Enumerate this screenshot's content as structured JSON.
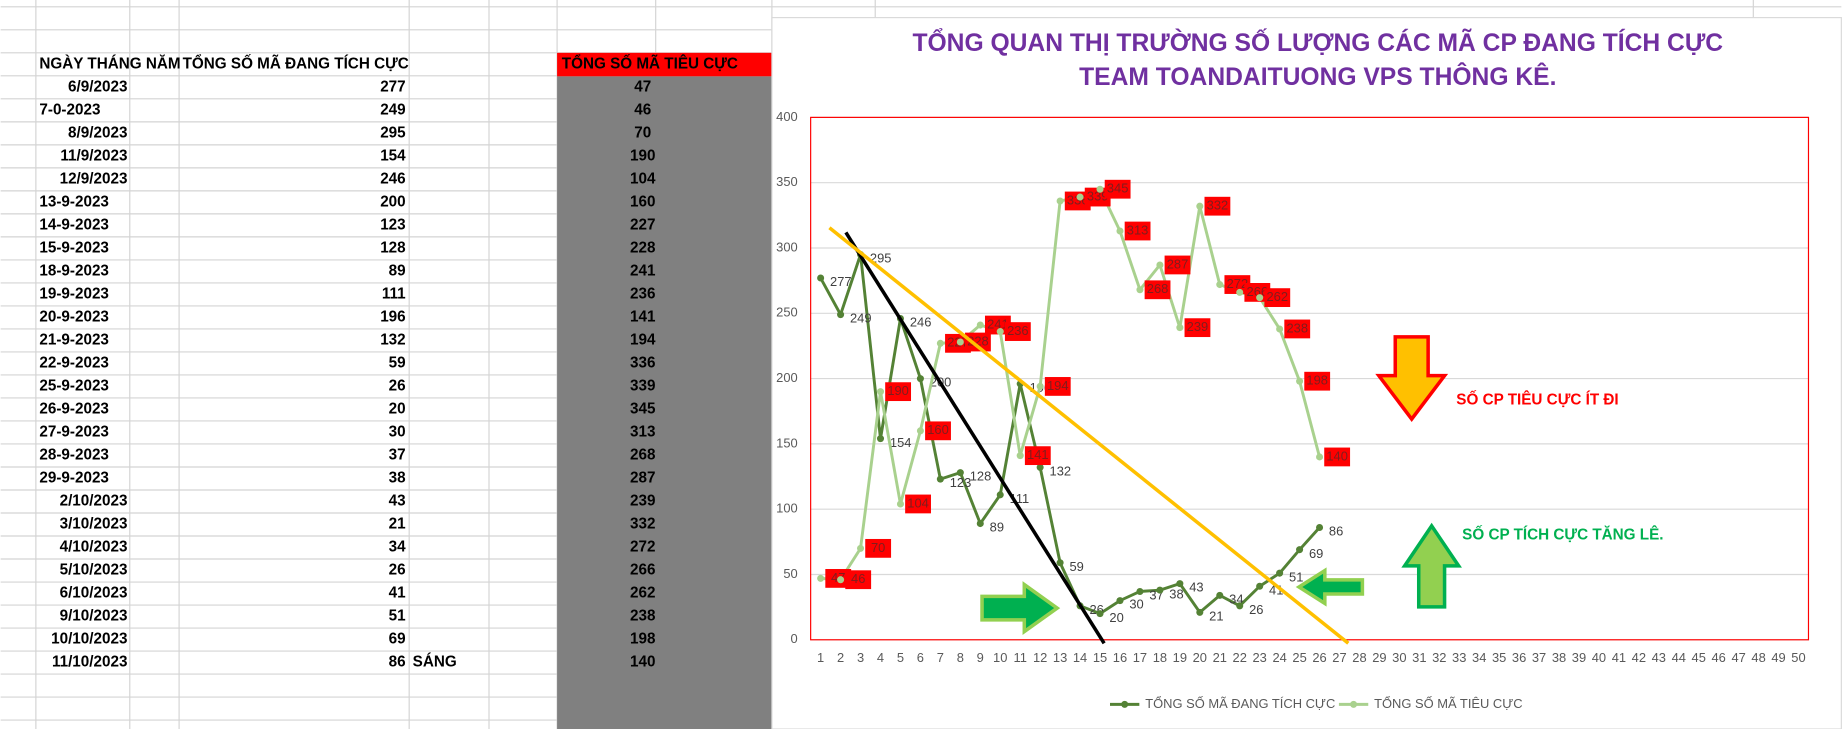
{
  "table": {
    "headers": [
      "NGÀY THÁNG NĂM",
      "TỔNG SỐ MÃ ĐANG TÍCH CỰC",
      "TỔNG SỐ MÃ TIÊU CỰC"
    ],
    "rows": [
      [
        "6/9/2023",
        "277",
        "47"
      ],
      [
        "7-0-2023",
        "249",
        "46"
      ],
      [
        "8/9/2023",
        "295",
        "70"
      ],
      [
        "11/9/2023",
        "154",
        "190"
      ],
      [
        "12/9/2023",
        "246",
        "104"
      ],
      [
        "13-9-2023",
        "200",
        "160"
      ],
      [
        "14-9-2023",
        "123",
        "227"
      ],
      [
        "15-9-2023",
        "128",
        "228"
      ],
      [
        "18-9-2023",
        "89",
        "241"
      ],
      [
        "19-9-2023",
        "111",
        "236"
      ],
      [
        "20-9-2023",
        "196",
        "141"
      ],
      [
        "21-9-2023",
        "132",
        "194"
      ],
      [
        "22-9-2023",
        "59",
        "336"
      ],
      [
        "25-9-2023",
        "26",
        "339"
      ],
      [
        "26-9-2023",
        "20",
        "345"
      ],
      [
        "27-9-2023",
        "30",
        "313"
      ],
      [
        "28-9-2023",
        "37",
        "268"
      ],
      [
        "29-9-2023",
        "38",
        "287"
      ],
      [
        "2/10/2023",
        "43",
        "239"
      ],
      [
        "3/10/2023",
        "21",
        "332"
      ],
      [
        "4/10/2023",
        "34",
        "272"
      ],
      [
        "5/10/2023",
        "26",
        "266"
      ],
      [
        "6/10/2023",
        "41",
        "262"
      ],
      [
        "9/10/2023",
        "51",
        "238"
      ],
      [
        "10/10/2023",
        "69",
        "198"
      ],
      [
        "11/10/2023",
        "86",
        "140",
        "SÁNG"
      ]
    ]
  },
  "chart_data": {
    "type": "line",
    "title": [
      "TỔNG QUAN THỊ TRƯỜNG SỐ LƯỢNG CÁC MÃ CP ĐANG TÍCH CỰC",
      "TEAM TOANDAITUONG VPS THÔNG KÊ."
    ],
    "annotations": [
      "SỐ CP TIÊU CỰC ÍT ĐI",
      "SỐ CP TÍCH CỰC TĂNG LÊ."
    ],
    "categories": [
      1,
      2,
      3,
      4,
      5,
      6,
      7,
      8,
      9,
      10,
      11,
      12,
      13,
      14,
      15,
      16,
      17,
      18,
      19,
      20,
      21,
      22,
      23,
      24,
      25,
      26,
      27,
      28,
      29,
      30,
      31,
      32,
      33,
      34,
      35,
      36,
      37,
      38,
      39,
      40,
      41,
      42,
      43,
      44,
      45,
      46,
      47,
      48,
      49,
      50
    ],
    "series": [
      {
        "name": "TỔNG SỐ MÃ ĐANG TÍCH CỰC",
        "color": "#548235",
        "values": [
          277,
          249,
          295,
          154,
          246,
          200,
          123,
          128,
          89,
          111,
          196,
          132,
          59,
          26,
          20,
          30,
          37,
          38,
          43,
          21,
          34,
          26,
          41,
          51,
          69,
          86,
          null,
          null,
          null,
          null,
          null,
          null,
          null,
          null,
          null,
          null,
          null,
          null,
          null,
          null,
          null,
          null,
          null,
          null,
          null,
          null,
          null,
          null,
          null,
          null
        ]
      },
      {
        "name": "TỔNG SỐ MÃ TIÊU CỰC",
        "color": "#a9d18e",
        "values": [
          47,
          46,
          70,
          190,
          104,
          160,
          227,
          228,
          241,
          236,
          141,
          194,
          336,
          339,
          345,
          313,
          268,
          287,
          239,
          332,
          272,
          266,
          262,
          238,
          198,
          140,
          null,
          null,
          null,
          null,
          null,
          null,
          null,
          null,
          null,
          null,
          null,
          null,
          null,
          null,
          null,
          null,
          null,
          null,
          null,
          null,
          null,
          null,
          null,
          null
        ]
      }
    ],
    "ylim": [
      0,
      400
    ],
    "yticks": [
      0,
      50,
      100,
      150,
      200,
      250,
      300,
      350,
      400
    ],
    "grid": true,
    "legend": "bottom"
  }
}
